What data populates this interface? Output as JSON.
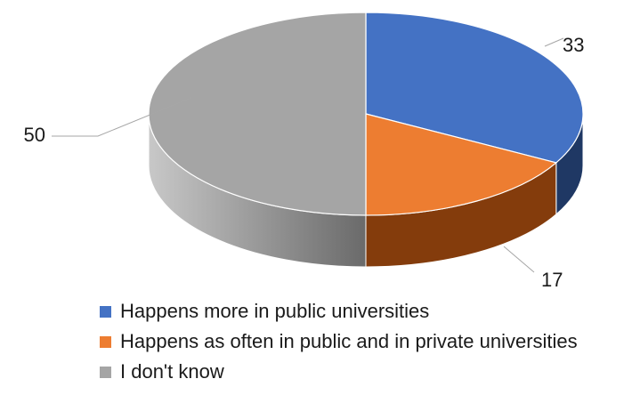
{
  "chart_data": {
    "type": "pie",
    "style": "3d",
    "title": "",
    "legend_position": "bottom",
    "series": [
      {
        "name": "Happens more in public universities",
        "value": 33,
        "label": "33",
        "color": "#4472C4",
        "side_color": "#1F3864"
      },
      {
        "name": "Happens as often in public and in private universities",
        "value": 17,
        "label": "17",
        "color": "#ED7D31",
        "side_color": "#843C0C"
      },
      {
        "name": "I don't know",
        "value": 50,
        "label": "50",
        "color": "#A5A5A5",
        "side_color": "#6E6E6E"
      }
    ]
  }
}
